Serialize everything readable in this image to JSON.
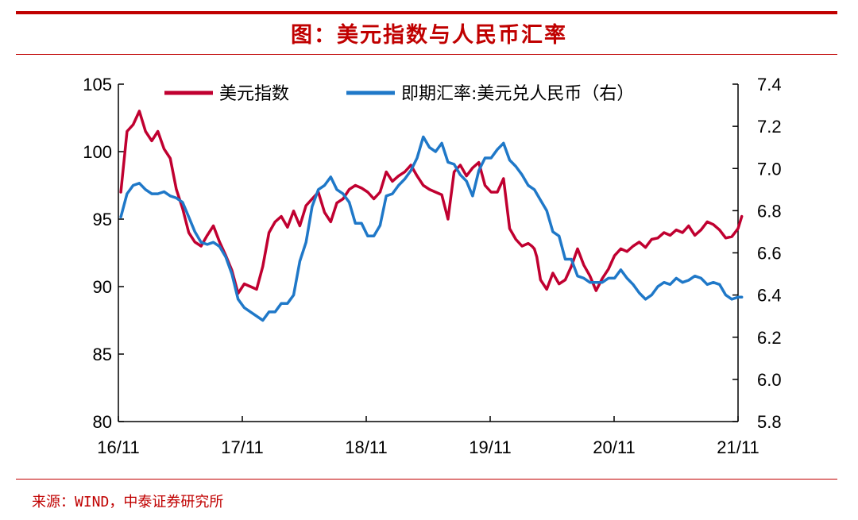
{
  "title": "图：美元指数与人民币汇率",
  "source": "来源：WIND，中泰证券研究所",
  "chart_data": {
    "type": "line",
    "x_tick_labels": [
      "16/11",
      "17/11",
      "18/11",
      "19/11",
      "20/11",
      "21/11"
    ],
    "y_left": {
      "ylim": [
        80,
        105
      ],
      "ticks": [
        80,
        85,
        90,
        95,
        100,
        105
      ]
    },
    "y_right": {
      "ylim": [
        5.8,
        7.4
      ],
      "ticks": [
        "5.8",
        "6.0",
        "6.2",
        "6.4",
        "6.6",
        "6.8",
        "7.0",
        "7.2",
        "7.4"
      ]
    },
    "legend_position": "top",
    "series": [
      {
        "name": "美元指数",
        "color": "#c00030",
        "axis": "left",
        "x": [
          2016.85,
          2016.9,
          2016.95,
          2017.0,
          2017.05,
          2017.1,
          2017.15,
          2017.2,
          2017.25,
          2017.3,
          2017.35,
          2017.4,
          2017.45,
          2017.5,
          2017.55,
          2017.6,
          2017.65,
          2017.7,
          2017.75,
          2017.8,
          2017.85,
          2017.9,
          2017.95,
          2018.0,
          2018.05,
          2018.1,
          2018.15,
          2018.2,
          2018.25,
          2018.3,
          2018.35,
          2018.4,
          2018.45,
          2018.5,
          2018.55,
          2018.6,
          2018.65,
          2018.7,
          2018.75,
          2018.8,
          2018.85,
          2018.9,
          2018.95,
          2019.0,
          2019.05,
          2019.1,
          2019.15,
          2019.2,
          2019.25,
          2019.3,
          2019.35,
          2019.4,
          2019.45,
          2019.5,
          2019.55,
          2019.6,
          2019.65,
          2019.7,
          2019.75,
          2019.8,
          2019.85,
          2019.9,
          2019.95,
          2020.0,
          2020.05,
          2020.1,
          2020.15,
          2020.18,
          2020.2,
          2020.22,
          2020.25,
          2020.3,
          2020.35,
          2020.4,
          2020.45,
          2020.5,
          2020.55,
          2020.6,
          2020.65,
          2020.7,
          2020.75,
          2020.8,
          2020.85,
          2020.9,
          2020.95,
          2021.0,
          2021.05,
          2021.1,
          2021.15,
          2021.2,
          2021.25,
          2021.3,
          2021.35,
          2021.4,
          2021.45,
          2021.5,
          2021.55,
          2021.6,
          2021.65,
          2021.7,
          2021.75,
          2021.8,
          2021.85,
          2021.88
        ],
        "values": [
          97.0,
          101.5,
          102.0,
          103.0,
          101.5,
          100.8,
          101.5,
          100.2,
          99.5,
          97.2,
          95.8,
          94.0,
          93.3,
          93.0,
          93.8,
          94.5,
          93.3,
          92.3,
          91.2,
          89.5,
          90.2,
          90.0,
          89.8,
          91.5,
          94.0,
          94.8,
          95.2,
          94.4,
          95.6,
          94.5,
          96.0,
          96.5,
          97.0,
          95.5,
          94.8,
          96.2,
          96.5,
          97.2,
          97.5,
          97.3,
          97.0,
          96.5,
          97.0,
          98.5,
          97.8,
          98.2,
          98.5,
          99.0,
          98.2,
          97.5,
          97.2,
          97.0,
          96.8,
          95.0,
          98.5,
          99.0,
          98.2,
          98.8,
          99.2,
          97.5,
          97.0,
          97.0,
          98.0,
          94.3,
          93.5,
          93.0,
          93.2,
          93.0,
          92.8,
          92.2,
          90.5,
          89.8,
          91.0,
          90.2,
          90.5,
          91.5,
          92.8,
          91.6,
          90.8,
          89.7,
          90.6,
          91.3,
          92.3,
          92.8,
          92.6,
          93.0,
          93.3,
          92.9,
          93.5,
          93.6,
          94.0,
          93.8,
          94.2,
          94.0,
          94.5,
          93.8,
          94.2,
          94.8,
          94.6,
          94.2,
          93.6,
          93.7,
          94.3,
          95.2
        ]
      },
      {
        "name": "即期汇率:美元兑人民币（右）",
        "color": "#1f78c8",
        "axis": "right",
        "x": [
          2016.85,
          2016.9,
          2016.95,
          2017.0,
          2017.05,
          2017.1,
          2017.15,
          2017.2,
          2017.25,
          2017.3,
          2017.35,
          2017.4,
          2017.45,
          2017.5,
          2017.55,
          2017.6,
          2017.65,
          2017.7,
          2017.75,
          2017.8,
          2017.85,
          2017.9,
          2017.95,
          2018.0,
          2018.05,
          2018.1,
          2018.15,
          2018.2,
          2018.25,
          2018.3,
          2018.35,
          2018.4,
          2018.45,
          2018.5,
          2018.55,
          2018.6,
          2018.65,
          2018.7,
          2018.75,
          2018.8,
          2018.85,
          2018.9,
          2018.95,
          2019.0,
          2019.05,
          2019.1,
          2019.15,
          2019.2,
          2019.25,
          2019.3,
          2019.35,
          2019.4,
          2019.45,
          2019.5,
          2019.55,
          2019.6,
          2019.65,
          2019.7,
          2019.75,
          2019.8,
          2019.85,
          2019.9,
          2019.95,
          2020.0,
          2020.05,
          2020.1,
          2020.15,
          2020.2,
          2020.25,
          2020.3,
          2020.35,
          2020.4,
          2020.45,
          2020.5,
          2020.55,
          2020.6,
          2020.65,
          2020.7,
          2020.75,
          2020.8,
          2020.85,
          2020.9,
          2020.95,
          2021.0,
          2021.05,
          2021.1,
          2021.15,
          2021.2,
          2021.25,
          2021.3,
          2021.35,
          2021.4,
          2021.45,
          2021.5,
          2021.55,
          2021.6,
          2021.65,
          2021.7,
          2021.75,
          2021.8,
          2021.85,
          2021.88
        ],
        "values": [
          6.77,
          6.88,
          6.92,
          6.93,
          6.9,
          6.88,
          6.88,
          6.89,
          6.87,
          6.86,
          6.84,
          6.77,
          6.7,
          6.65,
          6.64,
          6.65,
          6.63,
          6.58,
          6.5,
          6.38,
          6.34,
          6.32,
          6.3,
          6.28,
          6.32,
          6.32,
          6.36,
          6.36,
          6.4,
          6.56,
          6.65,
          6.82,
          6.9,
          6.92,
          6.96,
          6.9,
          6.88,
          6.84,
          6.74,
          6.74,
          6.68,
          6.68,
          6.73,
          6.87,
          6.88,
          6.92,
          6.95,
          6.99,
          7.05,
          7.15,
          7.1,
          7.08,
          7.12,
          7.03,
          7.02,
          6.97,
          6.94,
          6.87,
          6.99,
          7.05,
          7.05,
          7.09,
          7.12,
          7.04,
          7.01,
          6.97,
          6.92,
          6.9,
          6.85,
          6.8,
          6.7,
          6.68,
          6.57,
          6.57,
          6.49,
          6.48,
          6.46,
          6.46,
          6.46,
          6.48,
          6.48,
          6.52,
          6.48,
          6.45,
          6.41,
          6.38,
          6.4,
          6.44,
          6.46,
          6.45,
          6.48,
          6.46,
          6.47,
          6.49,
          6.48,
          6.45,
          6.46,
          6.45,
          6.4,
          6.38,
          6.39,
          6.39
        ]
      }
    ]
  }
}
